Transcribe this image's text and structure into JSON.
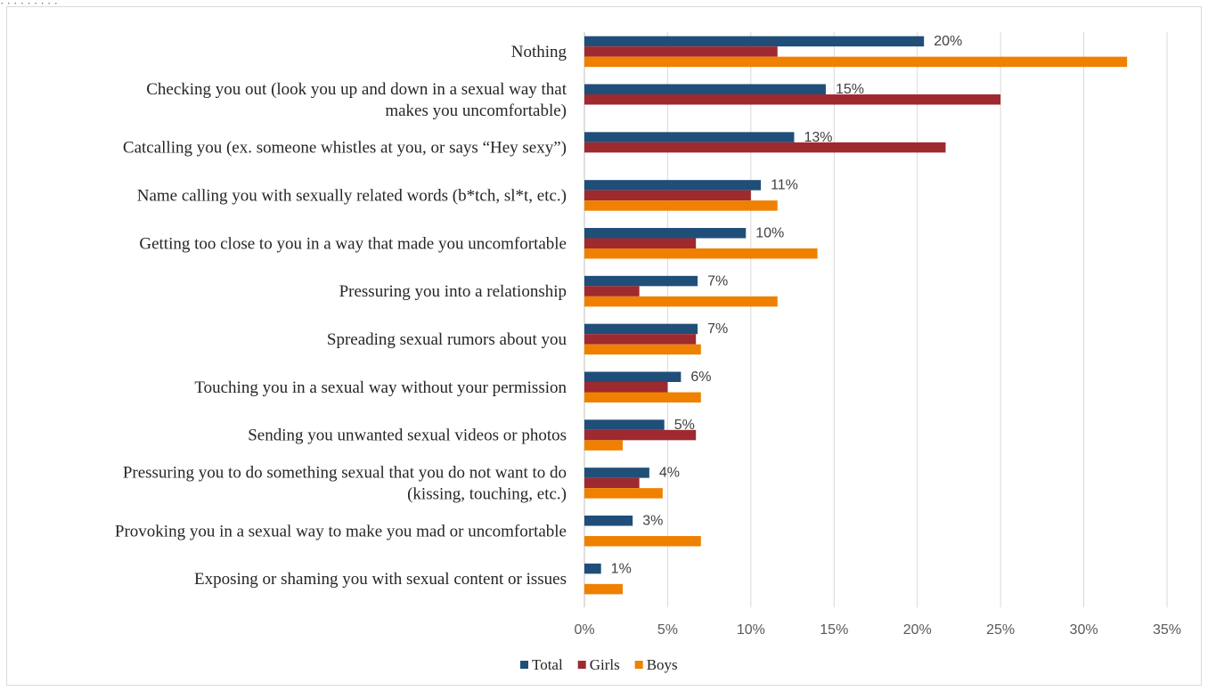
{
  "chart_data": {
    "type": "bar",
    "orientation": "horizontal",
    "categories": [
      [
        "Nothing"
      ],
      [
        "Checking you out (look you up and down in a sexual way that",
        "makes you uncomfortable)"
      ],
      [
        "Catcalling you (ex. someone whistles at you, or says “Hey sexy”)"
      ],
      [
        "Name calling you with sexually related words (b*tch, sl*t, etc.)"
      ],
      [
        "Getting too close to you in a way that made you uncomfortable"
      ],
      [
        "Pressuring you into a relationship"
      ],
      [
        "Spreading sexual rumors about you"
      ],
      [
        "Touching you in a sexual way without your permission"
      ],
      [
        "Sending you unwanted sexual videos or photos"
      ],
      [
        "Pressuring you to do something sexual that you do not want to do",
        "(kissing, touching, etc.)"
      ],
      [
        "Provoking you in a sexual way to make you mad or uncomfortable"
      ],
      [
        "Exposing or shaming you with sexual content or issues"
      ]
    ],
    "series": [
      {
        "name": "Total",
        "color": "#1f4e79",
        "values": [
          20.4,
          14.5,
          12.6,
          10.6,
          9.7,
          6.8,
          6.8,
          5.8,
          4.8,
          3.9,
          2.9,
          1.0
        ]
      },
      {
        "name": "Girls",
        "color": "#9e2a2f",
        "values": [
          11.6,
          25.0,
          21.7,
          10.0,
          6.7,
          3.3,
          6.7,
          5.0,
          6.7,
          3.3,
          0,
          0
        ]
      },
      {
        "name": "Boys",
        "color": "#f08000",
        "values": [
          32.6,
          0,
          0,
          11.6,
          14.0,
          11.6,
          7.0,
          7.0,
          2.3,
          4.7,
          7.0,
          2.3
        ]
      }
    ],
    "data_labels": [
      "20%",
      "15%",
      "13%",
      "11%",
      "10%",
      "7%",
      "7%",
      "6%",
      "5%",
      "4%",
      "3%",
      "1%"
    ],
    "xlim": [
      0,
      35
    ],
    "xticks": [
      "0%",
      "5%",
      "10%",
      "15%",
      "20%",
      "25%",
      "30%",
      "35%"
    ],
    "grid": "vertical",
    "legend_position": "bottom"
  },
  "top_clip_text": "· · · · · · · · ·"
}
